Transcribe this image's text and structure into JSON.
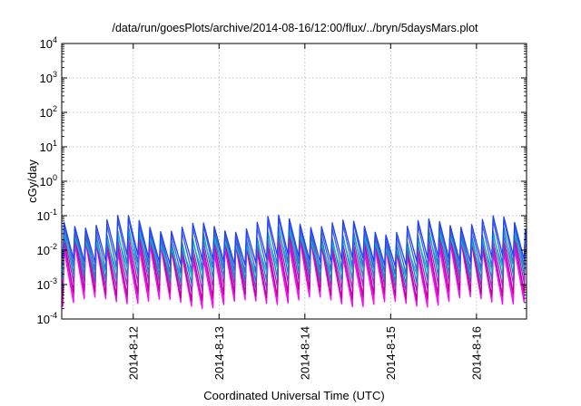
{
  "chart_data": {
    "type": "line",
    "title": "/data/run/goesPlots/archive/2014-08-16/12:00/flux/../bryn/5daysMars.plot",
    "xlabel": "Coordinated Universal Time (UTC)",
    "ylabel": "cGy/day",
    "y_scale": "log",
    "ylim": [
      0.0001,
      10000
    ],
    "y_ticks": [
      {
        "base": "10",
        "exp": "4"
      },
      {
        "base": "10",
        "exp": "3"
      },
      {
        "base": "10",
        "exp": "2"
      },
      {
        "base": "10",
        "exp": "1"
      },
      {
        "base": "10",
        "exp": "0"
      },
      {
        "base": "10",
        "exp": "-1"
      },
      {
        "base": "10",
        "exp": "-2"
      },
      {
        "base": "10",
        "exp": "-3"
      },
      {
        "base": "10",
        "exp": "-4"
      }
    ],
    "xlim": [
      "2014-08-11 04:00",
      "2014-08-16 14:00"
    ],
    "x_ticks": [
      "2014-8-12",
      "2014-8-13",
      "2014-8-14",
      "2014-8-15",
      "2014-8-16"
    ],
    "grid": true,
    "legend": "none",
    "cycle_hours": 3,
    "series": [
      {
        "color": "#ff00ff",
        "peak": 0.01,
        "trough": 0.0003
      },
      {
        "color": "#e020e0",
        "peak": 0.012,
        "trough": 0.0004
      },
      {
        "color": "#c000a0",
        "peak": 0.015,
        "trough": 0.0005
      },
      {
        "color": "#9030c0",
        "peak": 0.02,
        "trough": 0.0009
      },
      {
        "color": "#2080c0",
        "peak": 0.03,
        "trough": 0.0015
      },
      {
        "color": "#00c0c0",
        "peak": 0.02,
        "trough": 0.0025
      },
      {
        "color": "#4060e0",
        "peak": 0.045,
        "trough": 0.003
      },
      {
        "color": "#2040ff",
        "peak": 0.055,
        "trough": 0.005
      }
    ]
  }
}
